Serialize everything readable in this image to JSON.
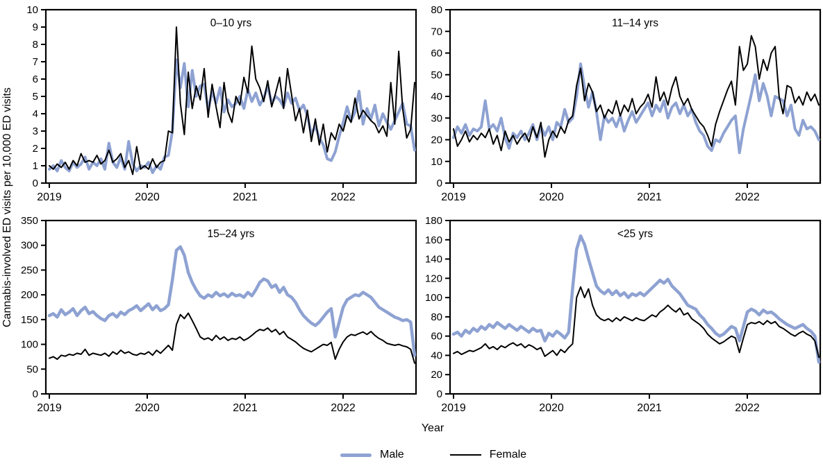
{
  "figure": {
    "ylabel": "Cannabis-involved ED visits per 10,000 ED visits",
    "xlabel": "Year",
    "legend": {
      "male_label": "Male",
      "female_label": "Female"
    },
    "colors": {
      "male": "#8EA2D2",
      "female": "#000000",
      "axis": "#000000"
    }
  },
  "chart_data": [
    {
      "type": "line",
      "title": "0–10 yrs",
      "ylim": [
        0,
        10
      ],
      "y_ticks": [
        0,
        1,
        2,
        3,
        4,
        5,
        6,
        7,
        8,
        9,
        10
      ],
      "x_ticks": [
        2019,
        2020,
        2021,
        2022
      ],
      "x_start": 2019.0,
      "x_end": 2022.75,
      "series": [
        {
          "name": "Male",
          "color": "#8EA2D2",
          "width": 4,
          "values": [
            0.8,
            1.0,
            0.7,
            1.3,
            0.9,
            0.7,
            1.2,
            0.9,
            1.1,
            1.5,
            0.8,
            1.2,
            1.0,
            1.4,
            0.8,
            2.3,
            1.2,
            0.9,
            1.5,
            0.8,
            2.4,
            1.1,
            0.7,
            1.0,
            0.9,
            1.2,
            0.6,
            1.0,
            0.8,
            1.5,
            1.6,
            3.0,
            7.1,
            5.5,
            6.9,
            4.4,
            6.5,
            5.0,
            5.6,
            5.7,
            4.2,
            5.3,
            4.6,
            5.5,
            4.1,
            4.8,
            4.4,
            4.6,
            5.0,
            4.3,
            5.4,
            4.7,
            5.2,
            4.5,
            4.9,
            5.6,
            4.6,
            5.0,
            4.8,
            4.4,
            5.2,
            4.6,
            4.9,
            4.2,
            4.5,
            3.9,
            2.8,
            3.3,
            2.6,
            2.2,
            1.4,
            1.3,
            1.8,
            2.7,
            3.5,
            4.4,
            3.6,
            4.1,
            5.3,
            3.4,
            4.3,
            3.7,
            4.5,
            3.3,
            4.0,
            3.5,
            3.1,
            3.6,
            4.1,
            4.6,
            3.4,
            3.3,
            1.9
          ]
        },
        {
          "name": "Female",
          "color": "#000000",
          "width": 2,
          "values": [
            1.0,
            0.8,
            1.1,
            0.9,
            1.2,
            0.8,
            1.3,
            1.0,
            1.7,
            1.2,
            1.3,
            1.2,
            1.6,
            1.1,
            1.3,
            1.9,
            1.2,
            1.4,
            1.7,
            0.9,
            1.3,
            0.5,
            2.1,
            0.8,
            1.0,
            0.8,
            1.4,
            0.9,
            1.2,
            1.3,
            3.0,
            2.9,
            9.0,
            4.6,
            2.8,
            6.4,
            4.3,
            5.6,
            4.8,
            6.6,
            3.8,
            5.7,
            4.4,
            3.2,
            5.8,
            4.1,
            3.5,
            5.0,
            4.5,
            6.1,
            5.2,
            7.9,
            6.0,
            5.5,
            4.7,
            5.9,
            4.4,
            5.2,
            6.1,
            4.3,
            6.6,
            5.1,
            3.6,
            4.3,
            2.9,
            4.2,
            2.4,
            3.7,
            2.2,
            3.4,
            1.8,
            2.9,
            2.5,
            3.4,
            3.0,
            3.9,
            3.5,
            4.9,
            3.7,
            4.2,
            3.9,
            3.6,
            3.4,
            2.9,
            3.3,
            2.7,
            5.8,
            3.4,
            7.6,
            4.3,
            2.6,
            3.1,
            5.8
          ]
        }
      ]
    },
    {
      "type": "line",
      "title": "11–14 yrs",
      "ylim": [
        0,
        80
      ],
      "y_ticks": [
        0,
        10,
        20,
        30,
        40,
        50,
        60,
        70,
        80
      ],
      "x_ticks": [
        2019,
        2020,
        2021,
        2022
      ],
      "x_start": 2019.0,
      "x_end": 2022.75,
      "series": [
        {
          "name": "Male",
          "color": "#8EA2D2",
          "width": 4,
          "values": [
            21,
            26,
            23,
            27,
            22,
            25,
            24,
            26,
            38,
            25,
            27,
            24,
            30,
            21,
            16,
            23,
            21,
            24,
            20,
            23,
            27,
            20,
            26,
            22,
            26,
            20,
            28,
            26,
            34,
            28,
            30,
            40,
            55,
            44,
            35,
            42,
            33,
            20,
            31,
            28,
            30,
            26,
            31,
            24,
            29,
            33,
            28,
            31,
            34,
            37,
            31,
            36,
            33,
            38,
            30,
            35,
            37,
            32,
            36,
            31,
            34,
            28,
            24,
            22,
            17,
            15,
            20,
            19,
            23,
            26,
            29,
            31,
            14,
            25,
            33,
            41,
            50,
            38,
            46,
            40,
            31,
            40,
            39,
            38,
            31,
            36,
            25,
            22,
            29,
            25,
            26,
            24,
            20
          ]
        },
        {
          "name": "Female",
          "color": "#000000",
          "width": 2,
          "values": [
            25,
            17,
            20,
            24,
            19,
            22,
            20,
            23,
            21,
            25,
            18,
            22,
            15,
            24,
            19,
            22,
            18,
            21,
            23,
            19,
            26,
            21,
            28,
            12,
            20,
            24,
            21,
            26,
            23,
            29,
            31,
            45,
            53,
            38,
            46,
            42,
            33,
            36,
            30,
            34,
            32,
            38,
            31,
            36,
            33,
            39,
            32,
            35,
            37,
            41,
            35,
            49,
            38,
            42,
            36,
            44,
            49,
            40,
            36,
            39,
            34,
            31,
            28,
            26,
            22,
            17,
            27,
            33,
            38,
            43,
            47,
            36,
            63,
            52,
            55,
            68,
            63,
            48,
            57,
            52,
            60,
            63,
            40,
            32,
            45,
            44,
            37,
            40,
            36,
            42,
            38,
            41,
            36
          ]
        }
      ]
    },
    {
      "type": "line",
      "title": "15–24 yrs",
      "ylim": [
        0,
        350
      ],
      "y_ticks": [
        0,
        50,
        100,
        150,
        200,
        250,
        300,
        350
      ],
      "x_ticks": [
        2019,
        2020,
        2021,
        2022
      ],
      "x_start": 2019.0,
      "x_end": 2022.75,
      "series": [
        {
          "name": "Male",
          "color": "#8EA2D2",
          "width": 4.5,
          "values": [
            158,
            162,
            155,
            170,
            160,
            165,
            172,
            158,
            168,
            175,
            162,
            166,
            158,
            152,
            148,
            158,
            162,
            155,
            165,
            160,
            168,
            172,
            178,
            168,
            175,
            182,
            170,
            178,
            168,
            172,
            180,
            230,
            290,
            297,
            280,
            245,
            225,
            210,
            198,
            193,
            200,
            196,
            205,
            198,
            202,
            196,
            203,
            198,
            200,
            195,
            205,
            198,
            210,
            225,
            232,
            228,
            215,
            220,
            205,
            215,
            200,
            195,
            185,
            170,
            158,
            150,
            143,
            138,
            145,
            155,
            165,
            172,
            115,
            145,
            175,
            190,
            195,
            200,
            198,
            205,
            200,
            195,
            185,
            175,
            170,
            165,
            160,
            155,
            152,
            148,
            150,
            145,
            78
          ]
        },
        {
          "name": "Female",
          "color": "#000000",
          "width": 2,
          "values": [
            72,
            75,
            70,
            78,
            76,
            80,
            78,
            82,
            80,
            90,
            78,
            82,
            80,
            78,
            82,
            76,
            85,
            80,
            88,
            82,
            85,
            80,
            78,
            82,
            80,
            85,
            78,
            88,
            82,
            90,
            98,
            88,
            140,
            160,
            152,
            163,
            148,
            132,
            115,
            110,
            113,
            108,
            118,
            110,
            115,
            108,
            112,
            110,
            115,
            108,
            112,
            118,
            125,
            130,
            128,
            133,
            125,
            130,
            120,
            126,
            115,
            110,
            105,
            98,
            92,
            88,
            85,
            90,
            95,
            100,
            98,
            104,
            70,
            90,
            105,
            115,
            120,
            118,
            122,
            125,
            120,
            126,
            118,
            112,
            108,
            102,
            100,
            98,
            100,
            97,
            95,
            90,
            62
          ]
        }
      ]
    },
    {
      "type": "line",
      "title": "<25 yrs",
      "ylim": [
        0,
        180
      ],
      "y_ticks": [
        0,
        20,
        40,
        60,
        80,
        100,
        120,
        140,
        160,
        180
      ],
      "x_ticks": [
        2019,
        2020,
        2021,
        2022
      ],
      "x_start": 2019.0,
      "x_end": 2022.75,
      "series": [
        {
          "name": "Male",
          "color": "#8EA2D2",
          "width": 4.5,
          "values": [
            62,
            64,
            60,
            66,
            63,
            68,
            65,
            70,
            67,
            72,
            69,
            74,
            71,
            68,
            72,
            69,
            66,
            70,
            67,
            64,
            68,
            65,
            66,
            55,
            63,
            60,
            65,
            62,
            58,
            64,
            110,
            150,
            164,
            155,
            140,
            126,
            112,
            107,
            104,
            108,
            103,
            107,
            102,
            105,
            100,
            104,
            102,
            105,
            102,
            106,
            110,
            114,
            118,
            115,
            119,
            112,
            108,
            104,
            98,
            92,
            90,
            88,
            82,
            78,
            72,
            68,
            63,
            60,
            62,
            66,
            70,
            68,
            55,
            70,
            85,
            88,
            86,
            82,
            87,
            84,
            85,
            82,
            78,
            75,
            72,
            70,
            68,
            70,
            72,
            68,
            65,
            60,
            33
          ]
        },
        {
          "name": "Female",
          "color": "#000000",
          "width": 2,
          "values": [
            42,
            44,
            41,
            43,
            45,
            44,
            46,
            48,
            52,
            47,
            49,
            46,
            50,
            48,
            51,
            53,
            50,
            52,
            48,
            51,
            49,
            46,
            48,
            39,
            42,
            45,
            40,
            46,
            43,
            48,
            52,
            100,
            111,
            100,
            109,
            92,
            82,
            78,
            76,
            78,
            75,
            79,
            76,
            80,
            78,
            76,
            79,
            77,
            76,
            79,
            82,
            80,
            85,
            88,
            92,
            88,
            85,
            89,
            82,
            84,
            78,
            75,
            72,
            68,
            62,
            58,
            55,
            52,
            54,
            57,
            60,
            58,
            43,
            58,
            72,
            74,
            73,
            75,
            72,
            76,
            73,
            75,
            70,
            68,
            65,
            62,
            60,
            63,
            65,
            62,
            60,
            55,
            38
          ]
        }
      ]
    }
  ]
}
